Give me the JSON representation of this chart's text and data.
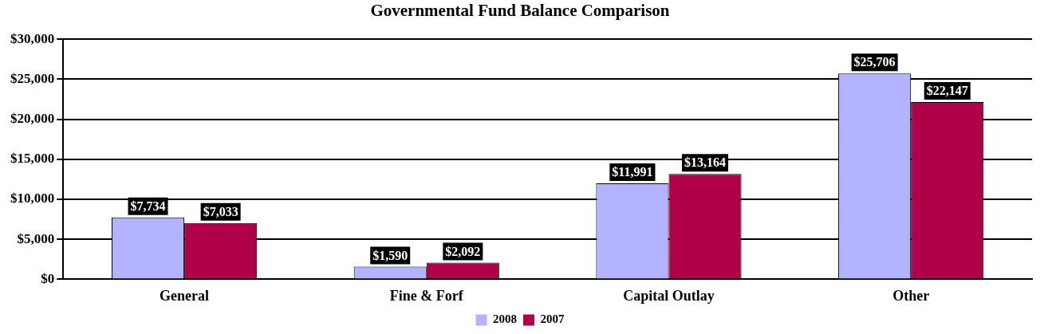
{
  "chart_data": {
    "type": "bar",
    "title": "Governmental Fund Balance Comparison",
    "categories": [
      "General",
      "Fine & Forf",
      "Capital Outlay",
      "Other"
    ],
    "series": [
      {
        "name": "2008",
        "color": "#b3b3ff",
        "values": [
          7734,
          1590,
          11991,
          25706
        ],
        "value_labels": [
          "$7,734",
          "$1,590",
          "$11,991",
          "$25,706"
        ]
      },
      {
        "name": "2007",
        "color": "#b0004a",
        "values": [
          7033,
          2092,
          13164,
          22147
        ],
        "value_labels": [
          "$7,033",
          "$2,092",
          "$13,164",
          "$22,147"
        ]
      }
    ],
    "ylim": [
      0,
      30000
    ],
    "yticks": [
      {
        "value": 0,
        "label": "$0"
      },
      {
        "value": 5000,
        "label": "$5,000"
      },
      {
        "value": 10000,
        "label": "$10,000"
      },
      {
        "value": 15000,
        "label": "$15,000"
      },
      {
        "value": 20000,
        "label": "$20,000"
      },
      {
        "value": 25000,
        "label": "$25,000"
      },
      {
        "value": 30000,
        "label": "$30,000"
      }
    ],
    "grid": "y",
    "legend": "bottom"
  }
}
